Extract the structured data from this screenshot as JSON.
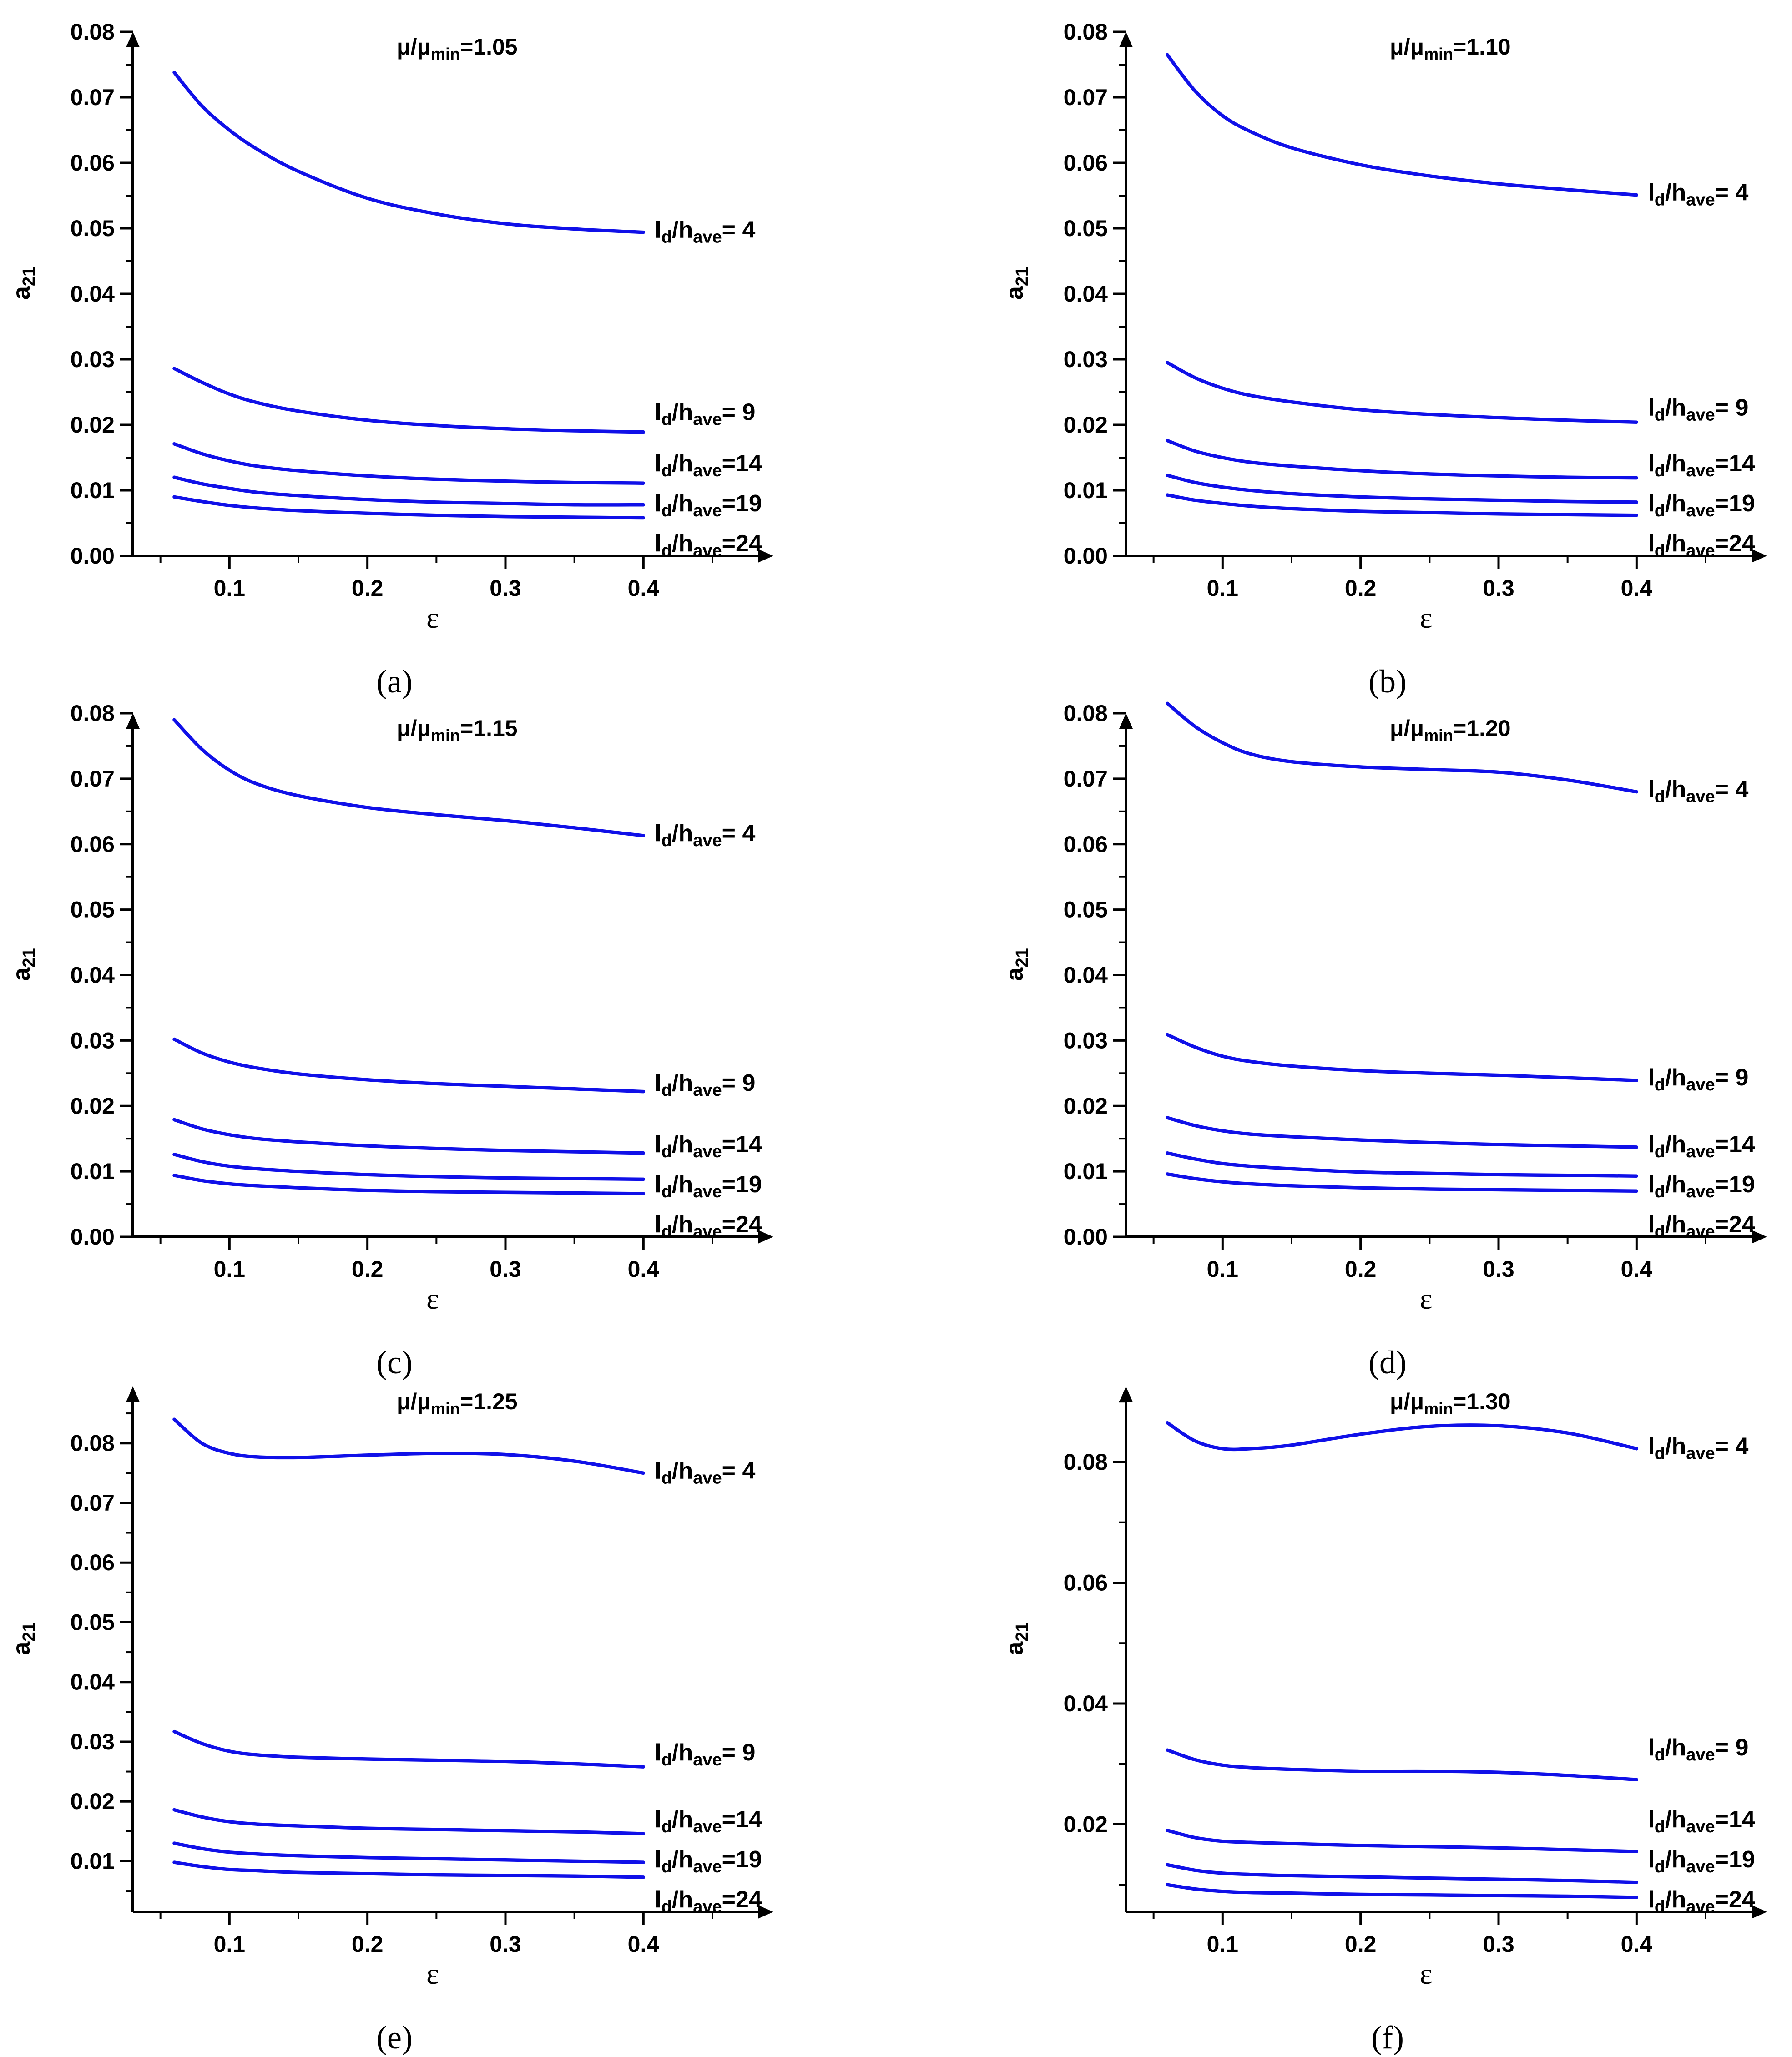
{
  "colors": {
    "line": "#1010e8",
    "axis": "#000000",
    "background": "#ffffff"
  },
  "chart_data": [
    {
      "type": "line",
      "panel": "(a)",
      "title": "μ/μmin=1.05",
      "title_prefix": "μ/μ",
      "title_sub": "min",
      "title_suffix": "=1.05",
      "xlabel": "ε",
      "ylabel": "a21",
      "ylabel_main": "a",
      "ylabel_sub": "21",
      "xlim": [
        0.03,
        0.47
      ],
      "ylim": [
        0,
        0.08
      ],
      "xticks": [
        0.1,
        0.2,
        0.3,
        0.4
      ],
      "xtick_labels": [
        "0.1",
        "0.2",
        "0.3",
        "0.4"
      ],
      "yticks": [
        0,
        0.01,
        0.02,
        0.03,
        0.04,
        0.05,
        0.06,
        0.07,
        0.08
      ],
      "ytick_labels": [
        "0.00",
        "0.01",
        "0.02",
        "0.03",
        "0.04",
        "0.05",
        "0.06",
        "0.07",
        "0.08"
      ],
      "x": [
        0.06,
        0.08,
        0.1,
        0.12,
        0.15,
        0.2,
        0.25,
        0.3,
        0.35,
        0.4
      ],
      "series": [
        {
          "name": "ld/have= 4",
          "label_value": " 4",
          "values": [
            0.0738,
            0.0687,
            0.065,
            0.0621,
            0.0587,
            0.0546,
            0.0522,
            0.0507,
            0.0499,
            0.0494
          ]
        },
        {
          "name": "ld/have= 9",
          "label_value": " 9",
          "values": [
            0.0286,
            0.0265,
            0.0247,
            0.0234,
            0.0221,
            0.0207,
            0.0199,
            0.0194,
            0.0191,
            0.0189
          ]
        },
        {
          "name": "ld/have=14",
          "label_value": "14",
          "values": [
            0.0171,
            0.0156,
            0.0145,
            0.0137,
            0.013,
            0.0122,
            0.0117,
            0.0114,
            0.0112,
            0.0111
          ]
        },
        {
          "name": "ld/have=19",
          "label_value": "19",
          "values": [
            0.012,
            0.011,
            0.0103,
            0.0097,
            0.0092,
            0.0086,
            0.0082,
            0.008,
            0.0078,
            0.0078
          ]
        },
        {
          "name": "ld/have=24",
          "label_value": "24",
          "values": [
            0.009,
            0.0083,
            0.0077,
            0.0073,
            0.0069,
            0.0065,
            0.0062,
            0.006,
            0.0059,
            0.0058
          ]
        }
      ]
    },
    {
      "type": "line",
      "panel": "(b)",
      "title": "μ/μmin=1.10",
      "title_prefix": "μ/μ",
      "title_sub": "min",
      "title_suffix": "=1.10",
      "xlabel": "ε",
      "ylabel": "a21",
      "ylabel_main": "a",
      "ylabel_sub": "21",
      "xlim": [
        0.03,
        0.47
      ],
      "ylim": [
        0,
        0.08
      ],
      "xticks": [
        0.1,
        0.2,
        0.3,
        0.4
      ],
      "xtick_labels": [
        "0.1",
        "0.2",
        "0.3",
        "0.4"
      ],
      "yticks": [
        0,
        0.01,
        0.02,
        0.03,
        0.04,
        0.05,
        0.06,
        0.07,
        0.08
      ],
      "ytick_labels": [
        "0.00",
        "0.01",
        "0.02",
        "0.03",
        "0.04",
        "0.05",
        "0.06",
        "0.07",
        "0.08"
      ],
      "x": [
        0.06,
        0.08,
        0.1,
        0.12,
        0.15,
        0.2,
        0.25,
        0.3,
        0.35,
        0.4
      ],
      "series": [
        {
          "name": "ld/have= 4",
          "label_value": " 4",
          "values": [
            0.0765,
            0.071,
            0.0672,
            0.0648,
            0.0623,
            0.0597,
            0.058,
            0.0568,
            0.0559,
            0.0551
          ]
        },
        {
          "name": "ld/have= 9",
          "label_value": " 9",
          "values": [
            0.0295,
            0.0272,
            0.0256,
            0.0245,
            0.0235,
            0.0223,
            0.0216,
            0.0211,
            0.0207,
            0.0204
          ]
        },
        {
          "name": "ld/have=14",
          "label_value": "14",
          "values": [
            0.0176,
            0.016,
            0.015,
            0.0143,
            0.0137,
            0.013,
            0.0125,
            0.0122,
            0.012,
            0.0119
          ]
        },
        {
          "name": "ld/have=19",
          "label_value": "19",
          "values": [
            0.0123,
            0.0112,
            0.0105,
            0.01,
            0.0095,
            0.009,
            0.0087,
            0.0085,
            0.0083,
            0.0082
          ]
        },
        {
          "name": "ld/have=24",
          "label_value": "24",
          "values": [
            0.0093,
            0.0085,
            0.008,
            0.0076,
            0.0072,
            0.0068,
            0.0066,
            0.0064,
            0.0063,
            0.0062
          ]
        }
      ]
    },
    {
      "type": "line",
      "panel": "(c)",
      "title": "μ/μmin=1.15",
      "title_prefix": "μ/μ",
      "title_sub": "min",
      "title_suffix": "=1.15",
      "xlabel": "ε",
      "ylabel": "a21",
      "ylabel_main": "a",
      "ylabel_sub": "21",
      "xlim": [
        0.03,
        0.47
      ],
      "ylim": [
        0,
        0.08
      ],
      "xticks": [
        0.1,
        0.2,
        0.3,
        0.4
      ],
      "xtick_labels": [
        "0.1",
        "0.2",
        "0.3",
        "0.4"
      ],
      "yticks": [
        0,
        0.01,
        0.02,
        0.03,
        0.04,
        0.05,
        0.06,
        0.07,
        0.08
      ],
      "ytick_labels": [
        "0.00",
        "0.01",
        "0.02",
        "0.03",
        "0.04",
        "0.05",
        "0.06",
        "0.07",
        "0.08"
      ],
      "x": [
        0.06,
        0.08,
        0.1,
        0.12,
        0.15,
        0.2,
        0.25,
        0.3,
        0.35,
        0.4
      ],
      "series": [
        {
          "name": "ld/have= 4",
          "label_value": " 4",
          "values": [
            0.079,
            0.0745,
            0.0713,
            0.0692,
            0.0674,
            0.0656,
            0.0645,
            0.0636,
            0.0625,
            0.0613
          ]
        },
        {
          "name": "ld/have= 9",
          "label_value": " 9",
          "values": [
            0.0302,
            0.0281,
            0.0267,
            0.0258,
            0.0249,
            0.024,
            0.0234,
            0.023,
            0.0226,
            0.0222
          ]
        },
        {
          "name": "ld/have=14",
          "label_value": "14",
          "values": [
            0.0179,
            0.0165,
            0.0156,
            0.015,
            0.0145,
            0.0139,
            0.0135,
            0.0132,
            0.013,
            0.0128
          ]
        },
        {
          "name": "ld/have=19",
          "label_value": "19",
          "values": [
            0.0126,
            0.0115,
            0.0108,
            0.0104,
            0.01,
            0.0095,
            0.0092,
            0.009,
            0.0089,
            0.0088
          ]
        },
        {
          "name": "ld/have=24",
          "label_value": "24",
          "values": [
            0.0094,
            0.0086,
            0.0081,
            0.0078,
            0.0075,
            0.0071,
            0.0069,
            0.0068,
            0.0067,
            0.0066
          ]
        }
      ]
    },
    {
      "type": "line",
      "panel": "(d)",
      "title": "μ/μmin=1.20",
      "title_prefix": "μ/μ",
      "title_sub": "min",
      "title_suffix": "=1.20",
      "xlabel": "ε",
      "ylabel": "a21",
      "ylabel_main": "a",
      "ylabel_sub": "21",
      "xlim": [
        0.03,
        0.47
      ],
      "ylim": [
        0,
        0.08
      ],
      "xticks": [
        0.1,
        0.2,
        0.3,
        0.4
      ],
      "xtick_labels": [
        "0.1",
        "0.2",
        "0.3",
        "0.4"
      ],
      "yticks": [
        0,
        0.01,
        0.02,
        0.03,
        0.04,
        0.05,
        0.06,
        0.07,
        0.08
      ],
      "ytick_labels": [
        "0.00",
        "0.01",
        "0.02",
        "0.03",
        "0.04",
        "0.05",
        "0.06",
        "0.07",
        "0.08"
      ],
      "x": [
        0.06,
        0.08,
        0.1,
        0.12,
        0.15,
        0.2,
        0.25,
        0.3,
        0.35,
        0.4
      ],
      "series": [
        {
          "name": "ld/have= 4",
          "label_value": " 4",
          "values": [
            0.0815,
            0.078,
            0.0755,
            0.0738,
            0.0726,
            0.0718,
            0.0714,
            0.071,
            0.0698,
            0.068
          ]
        },
        {
          "name": "ld/have= 9",
          "label_value": " 9",
          "values": [
            0.0309,
            0.029,
            0.0276,
            0.0268,
            0.0261,
            0.0254,
            0.025,
            0.0247,
            0.0243,
            0.0239
          ]
        },
        {
          "name": "ld/have=14",
          "label_value": "14",
          "values": [
            0.0182,
            0.017,
            0.0162,
            0.0157,
            0.0153,
            0.0148,
            0.0144,
            0.0141,
            0.0139,
            0.0137
          ]
        },
        {
          "name": "ld/have=19",
          "label_value": "19",
          "values": [
            0.0128,
            0.0119,
            0.0112,
            0.0108,
            0.0104,
            0.0099,
            0.0097,
            0.0095,
            0.0094,
            0.0093
          ]
        },
        {
          "name": "ld/have=24",
          "label_value": "24",
          "values": [
            0.0096,
            0.0089,
            0.0084,
            0.0081,
            0.0078,
            0.0075,
            0.0073,
            0.0072,
            0.0071,
            0.007
          ]
        }
      ]
    },
    {
      "type": "line",
      "panel": "(e)",
      "title": "μ/μmin=1.25",
      "title_prefix": "μ/μ",
      "title_sub": "min",
      "title_suffix": "=1.25",
      "xlabel": "ε",
      "ylabel": "a21",
      "ylabel_main": "a",
      "ylabel_sub": "21",
      "xlim": [
        0.03,
        0.47
      ],
      "ylim": [
        0.0015,
        0.0895
      ],
      "xticks": [
        0.1,
        0.2,
        0.3,
        0.4
      ],
      "xtick_labels": [
        "0.1",
        "0.2",
        "0.3",
        "0.4"
      ],
      "yticks": [
        0.01,
        0.02,
        0.03,
        0.04,
        0.05,
        0.06,
        0.07,
        0.08
      ],
      "ytick_labels": [
        "0.01",
        "0.02",
        "0.03",
        "0.04",
        "0.05",
        "0.06",
        "0.07",
        "0.08"
      ],
      "x": [
        0.06,
        0.08,
        0.1,
        0.12,
        0.15,
        0.2,
        0.25,
        0.3,
        0.35,
        0.4
      ],
      "series": [
        {
          "name": "ld/have= 4",
          "label_value": " 4",
          "values": [
            0.084,
            0.08,
            0.0783,
            0.0777,
            0.0776,
            0.078,
            0.0783,
            0.0781,
            0.077,
            0.075
          ]
        },
        {
          "name": "ld/have= 9",
          "label_value": " 9",
          "values": [
            0.0317,
            0.0297,
            0.0284,
            0.0278,
            0.0274,
            0.0271,
            0.0269,
            0.0267,
            0.0263,
            0.0258
          ]
        },
        {
          "name": "ld/have=14",
          "label_value": "14",
          "values": [
            0.0186,
            0.0174,
            0.0166,
            0.0162,
            0.0159,
            0.0155,
            0.0153,
            0.0151,
            0.0149,
            0.0146
          ]
        },
        {
          "name": "ld/have=19",
          "label_value": "19",
          "values": [
            0.013,
            0.0121,
            0.0115,
            0.0112,
            0.0109,
            0.0106,
            0.0104,
            0.0102,
            0.01,
            0.0098
          ]
        },
        {
          "name": "ld/have=24",
          "label_value": "24",
          "values": [
            0.0098,
            0.0091,
            0.0086,
            0.0084,
            0.0081,
            0.0079,
            0.0077,
            0.0076,
            0.0075,
            0.0073
          ]
        }
      ]
    },
    {
      "type": "line",
      "panel": "(f)",
      "title": "μ/μmin=1.30",
      "title_prefix": "μ/μ",
      "title_sub": "min",
      "title_suffix": "=1.30",
      "xlabel": "ε",
      "ylabel": "a21",
      "ylabel_main": "a",
      "ylabel_sub": "21",
      "xlim": [
        0.03,
        0.47
      ],
      "ylim": [
        0.0055,
        0.0925
      ],
      "xticks": [
        0.1,
        0.2,
        0.3,
        0.4
      ],
      "xtick_labels": [
        "0.1",
        "0.2",
        "0.3",
        "0.4"
      ],
      "yticks": [
        0.02,
        0.04,
        0.06,
        0.08
      ],
      "ytick_labels": [
        "0.02",
        "0.04",
        "0.06",
        "0.08"
      ],
      "x": [
        0.06,
        0.08,
        0.1,
        0.12,
        0.15,
        0.2,
        0.25,
        0.3,
        0.35,
        0.4
      ],
      "series": [
        {
          "name": "ld/have= 4",
          "label_value": " 4",
          "values": [
            0.0865,
            0.0835,
            0.0822,
            0.0822,
            0.0828,
            0.0846,
            0.0859,
            0.086,
            0.0848,
            0.0822
          ]
        },
        {
          "name": "ld/have= 9",
          "label_value": " 9",
          "values": [
            0.0323,
            0.0307,
            0.0298,
            0.0294,
            0.0291,
            0.0288,
            0.0288,
            0.0286,
            0.0281,
            0.0274
          ]
        },
        {
          "name": "ld/have=14",
          "label_value": "14",
          "values": [
            0.019,
            0.0178,
            0.0172,
            0.017,
            0.0168,
            0.0165,
            0.0163,
            0.0161,
            0.0158,
            0.0155
          ]
        },
        {
          "name": "ld/have=19",
          "label_value": "19",
          "values": [
            0.0133,
            0.0124,
            0.0119,
            0.0117,
            0.0115,
            0.0113,
            0.0111,
            0.0109,
            0.0107,
            0.0104
          ]
        },
        {
          "name": "ld/have=24",
          "label_value": "24",
          "values": [
            0.01,
            0.0093,
            0.0089,
            0.0087,
            0.0086,
            0.0084,
            0.0083,
            0.0082,
            0.0081,
            0.0079
          ]
        }
      ]
    }
  ]
}
